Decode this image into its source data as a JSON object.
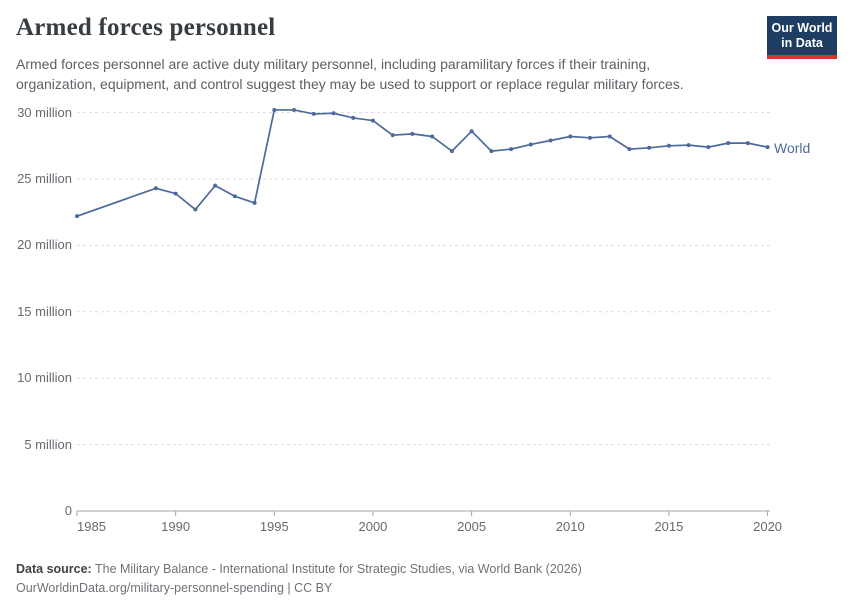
{
  "header": {
    "title": "Armed forces personnel",
    "subtitle": "Armed forces personnel are active duty military personnel, including paramilitary forces if their training,\norganization, equipment, and control suggest they may be used to support or replace regular military forces.",
    "logo": {
      "line1": "Our World",
      "line2": "in Data"
    }
  },
  "chart_data": {
    "type": "line",
    "title": "Armed forces personnel",
    "xlabel": "",
    "ylabel": "",
    "unit": "people",
    "grid": "dashed horizontal gridlines on, vertical off",
    "legend_position": "end-of-line label",
    "xlim": [
      1985,
      2020
    ],
    "ylim": [
      0,
      31.5
    ],
    "x_ticks": [
      1985,
      1990,
      1995,
      2000,
      2005,
      2010,
      2015,
      2020
    ],
    "y_ticks": [
      {
        "value": 0,
        "label": "0"
      },
      {
        "value": 5,
        "label": "5 million"
      },
      {
        "value": 10,
        "label": "10 million"
      },
      {
        "value": 15,
        "label": "15 million"
      },
      {
        "value": 20,
        "label": "20 million"
      },
      {
        "value": 25,
        "label": "25 million"
      },
      {
        "value": 30,
        "label": "30 million"
      }
    ],
    "x": [
      1985,
      1989,
      1990,
      1991,
      1992,
      1993,
      1994,
      1995,
      1996,
      1997,
      1998,
      1999,
      2000,
      2001,
      2002,
      2003,
      2004,
      2005,
      2006,
      2007,
      2008,
      2009,
      2010,
      2011,
      2012,
      2013,
      2014,
      2015,
      2016,
      2017,
      2018,
      2019,
      2020
    ],
    "series": [
      {
        "name": "World",
        "color": "#4c6a9c",
        "values_unit": "millions",
        "values": [
          22.2,
          24.3,
          23.9,
          22.7,
          24.5,
          23.7,
          23.2,
          30.2,
          30.2,
          29.9,
          29.95,
          29.6,
          29.4,
          28.3,
          28.4,
          28.2,
          27.1,
          28.6,
          27.1,
          27.25,
          27.6,
          27.9,
          28.2,
          28.1,
          28.2,
          27.25,
          27.35,
          27.5,
          27.55,
          27.4,
          27.7,
          27.7,
          27.4
        ]
      }
    ]
  },
  "footer": {
    "datasource_label": "Data source:",
    "datasource_value": "The Military Balance - International Institute for Strategic Studies, via World Bank (2026)",
    "note": "OurWorldinData.org/military-personnel-spending | CC BY"
  },
  "colors": {
    "line": "#4c6a9c",
    "axis": "#a5a5a5",
    "grid": "#dddddd",
    "tick_text": "#666b70",
    "logo_bg": "#1d3d63",
    "logo_stripe": "#d8352f"
  }
}
